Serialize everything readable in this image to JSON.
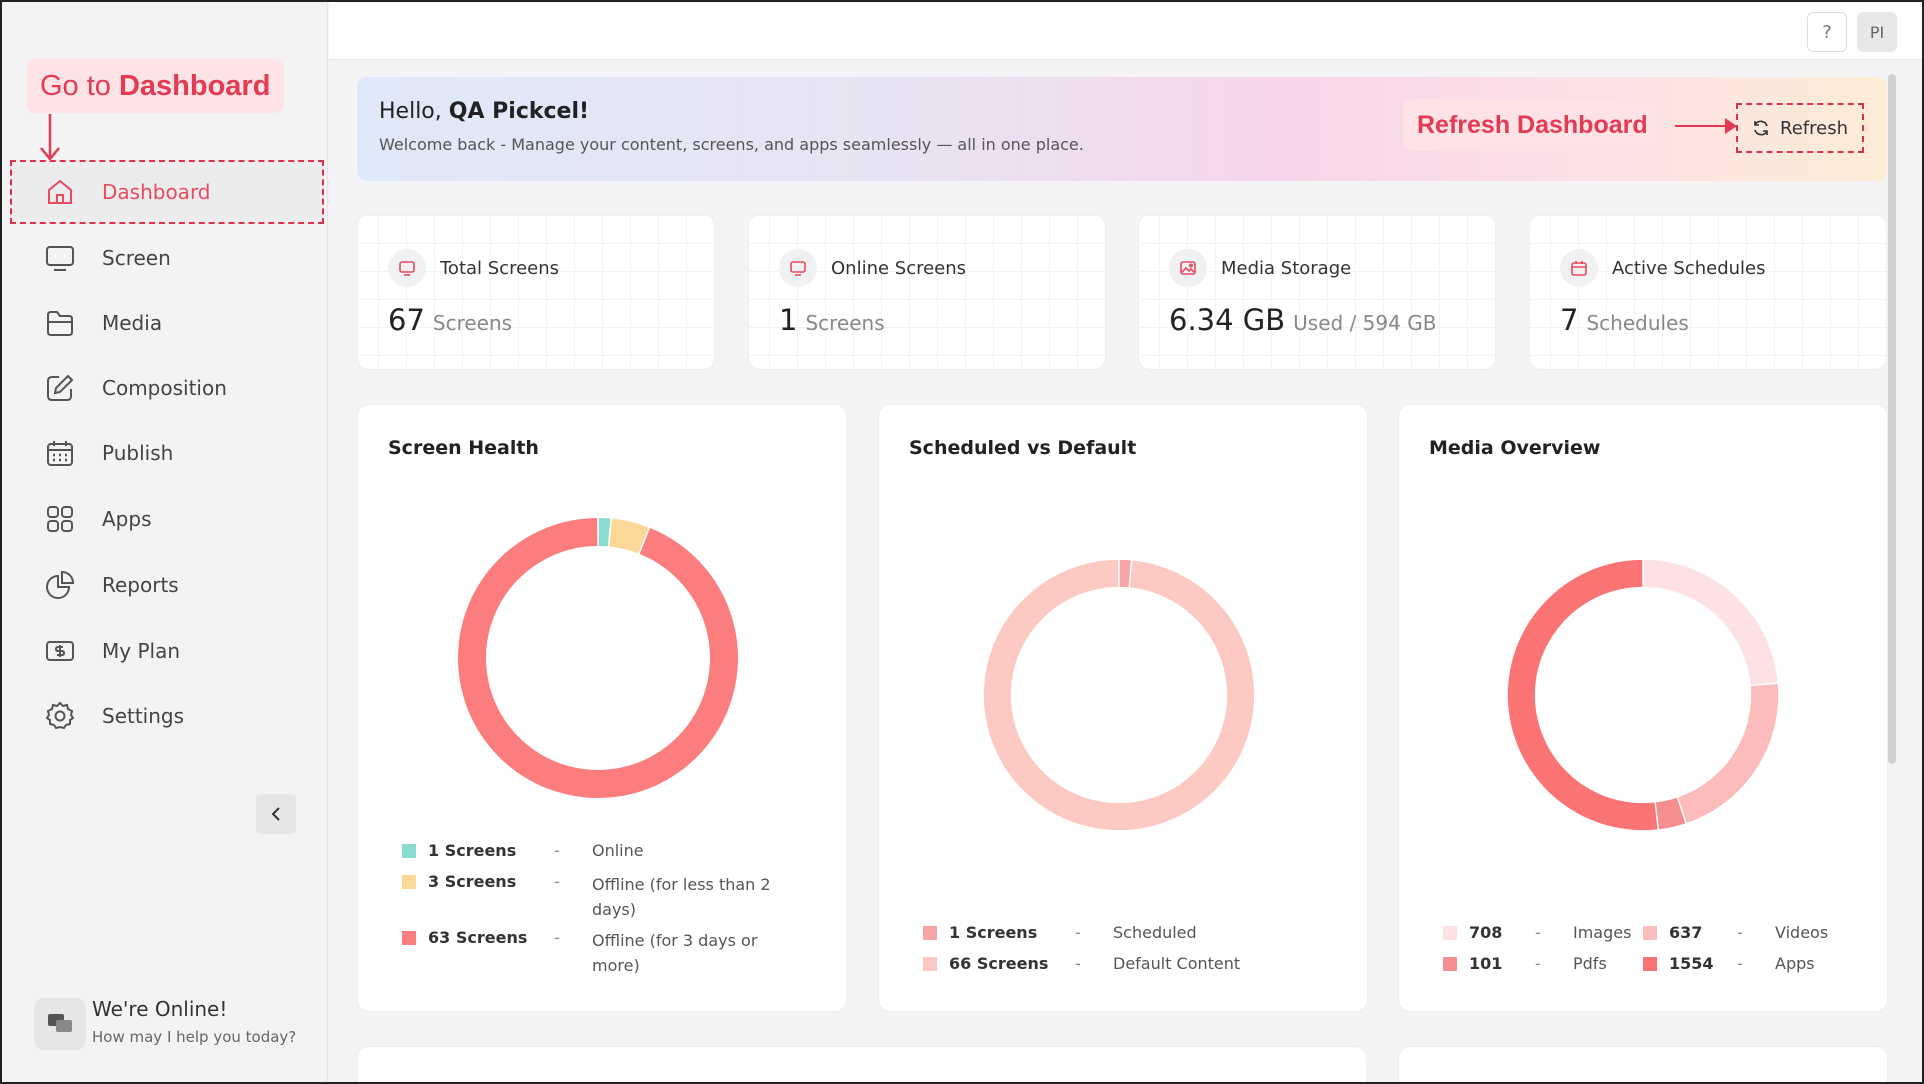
{
  "sidebar": {
    "annotation": {
      "prefix": "Go to",
      "target": "Dashboard"
    },
    "items": [
      {
        "label": "Dashboard",
        "icon": "home-icon"
      },
      {
        "label": "Screen",
        "icon": "monitor-icon"
      },
      {
        "label": "Media",
        "icon": "folder-icon"
      },
      {
        "label": "Composition",
        "icon": "edit-icon"
      },
      {
        "label": "Publish",
        "icon": "calendar-icon"
      },
      {
        "label": "Apps",
        "icon": "grid-icon"
      },
      {
        "label": "Reports",
        "icon": "pie-chart-icon"
      },
      {
        "label": "My Plan",
        "icon": "money-icon"
      },
      {
        "label": "Settings",
        "icon": "gear-icon"
      }
    ],
    "chat": {
      "title": "We're Online!",
      "subtitle": "How may I help you today?"
    }
  },
  "topbar": {
    "help": "?",
    "avatar": "PI"
  },
  "banner": {
    "greeting": "Hello,",
    "user": "QA Pickcel!",
    "subtitle": "Welcome back - Manage your content, screens, and apps seamlessly — all in one place.",
    "annotation": "Refresh Dashboard",
    "refresh_label": "Refresh"
  },
  "stats": [
    {
      "title": "Total Screens",
      "value": "67",
      "unit": "Screens",
      "icon": "monitor-icon"
    },
    {
      "title": "Online Screens",
      "value": "1",
      "unit": "Screens",
      "icon": "monitor-icon"
    },
    {
      "title": "Media Storage",
      "value": "6.34 GB",
      "unit": "Used / 594 GB",
      "icon": "image-icon"
    },
    {
      "title": "Active Schedules",
      "value": "7",
      "unit": "Schedules",
      "icon": "calendar-icon"
    }
  ],
  "chart_data": [
    {
      "type": "pie",
      "title": "Screen Health",
      "series": [
        {
          "name": "Online",
          "count_label": "1 Screens",
          "value": 1,
          "color": "#88dccf"
        },
        {
          "name": "Offline (for less than 2 days)",
          "count_label": "3 Screens",
          "value": 3,
          "color": "#fcd898"
        },
        {
          "name": "Offline (for 3 days or more)",
          "count_label": "63 Screens",
          "value": 63,
          "color": "#fb7d7d"
        }
      ]
    },
    {
      "type": "pie",
      "title": "Scheduled vs Default",
      "series": [
        {
          "name": "Scheduled",
          "count_label": "1 Screens",
          "value": 1,
          "color": "#f5a5a5"
        },
        {
          "name": "Default Content",
          "count_label": "66 Screens",
          "value": 66,
          "color": "#fccac2"
        }
      ]
    },
    {
      "type": "pie",
      "title": "Media Overview",
      "series": [
        {
          "name": "Images",
          "count_label": "708",
          "value": 708,
          "color": "#fde1e3"
        },
        {
          "name": "Videos",
          "count_label": "637",
          "value": 637,
          "color": "#fcbcbc"
        },
        {
          "name": "Pdfs",
          "count_label": "101",
          "value": 101,
          "color": "#f58f8f"
        },
        {
          "name": "Apps",
          "count_label": "1554",
          "value": 1554,
          "color": "#fa7474"
        }
      ]
    }
  ]
}
